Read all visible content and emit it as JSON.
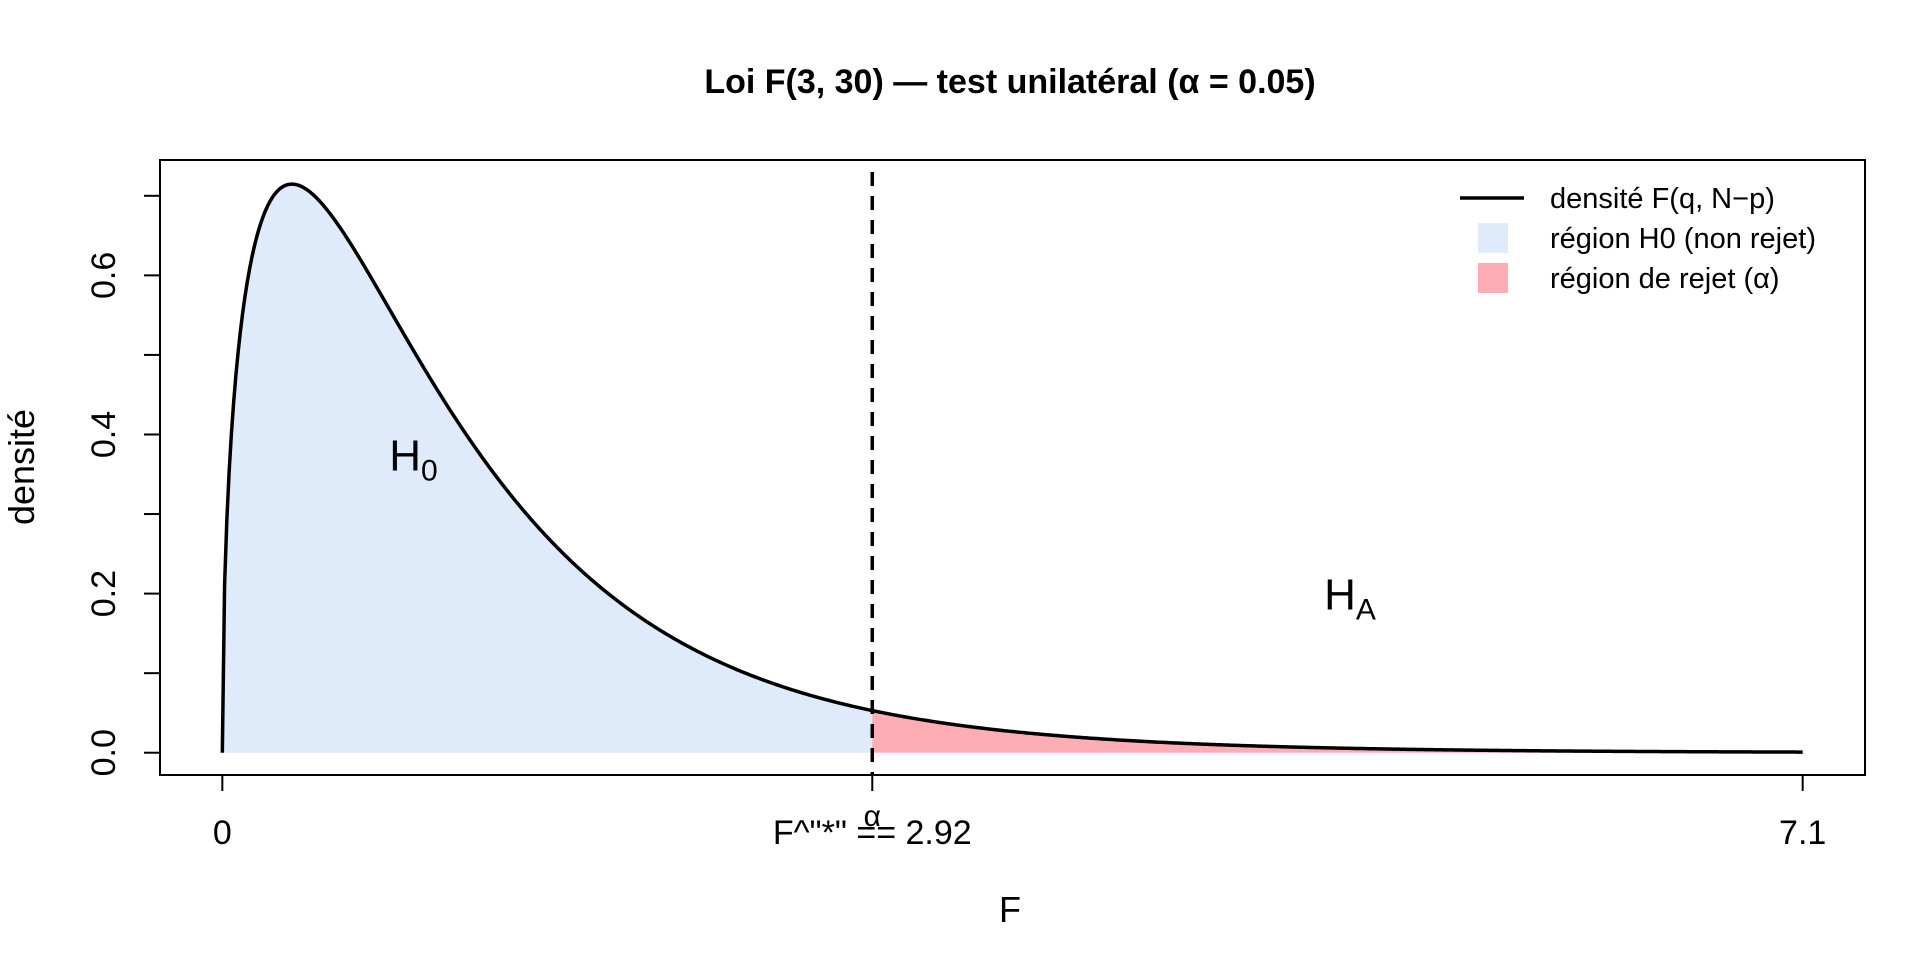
{
  "chart_data": {
    "type": "area",
    "title": "Loi F(3, 30) — test unilatéral (α = 0.05)",
    "xlabel": "F",
    "ylabel": "densité",
    "df1": 3,
    "df2": 30,
    "alpha": 0.05,
    "critical_value": 2.92,
    "x_range": [
      0,
      7.1
    ],
    "xlim": [
      -0.28,
      7.38
    ],
    "ylim": [
      -0.028,
      0.745
    ],
    "x_ticks": [
      {
        "value": 0,
        "label": "0"
      },
      {
        "value": 2.92,
        "label": "F^\"*\" == 2.92"
      },
      {
        "value": 7.1,
        "label": "7.1"
      }
    ],
    "critical_annotation": "α",
    "y_ticks": [
      {
        "value": 0.0,
        "label": "0.0"
      },
      {
        "value": 0.1,
        "label": ""
      },
      {
        "value": 0.2,
        "label": "0.2"
      },
      {
        "value": 0.3,
        "label": ""
      },
      {
        "value": 0.4,
        "label": "0.4"
      },
      {
        "value": 0.5,
        "label": ""
      },
      {
        "value": 0.6,
        "label": "0.6"
      },
      {
        "value": 0.7,
        "label": ""
      }
    ],
    "series": [
      {
        "name": "densité F(q, N−p)",
        "kind": "line",
        "color": "#000000"
      },
      {
        "name": "région H0 (non rejet)",
        "kind": "fill",
        "x_from": 0,
        "x_to": 2.92,
        "color": "#dfeafb"
      },
      {
        "name": "région de rejet (α)",
        "kind": "fill",
        "x_from": 2.92,
        "x_to": 7.1,
        "color": "#ffadb5"
      }
    ],
    "annotations": [
      {
        "main": "H",
        "sub": "0",
        "x": 0.75,
        "y": 0.355
      },
      {
        "main": "H",
        "sub": "A",
        "x": 4.95,
        "y": 0.18
      }
    ],
    "legend_position": "top-right",
    "grid": false
  }
}
